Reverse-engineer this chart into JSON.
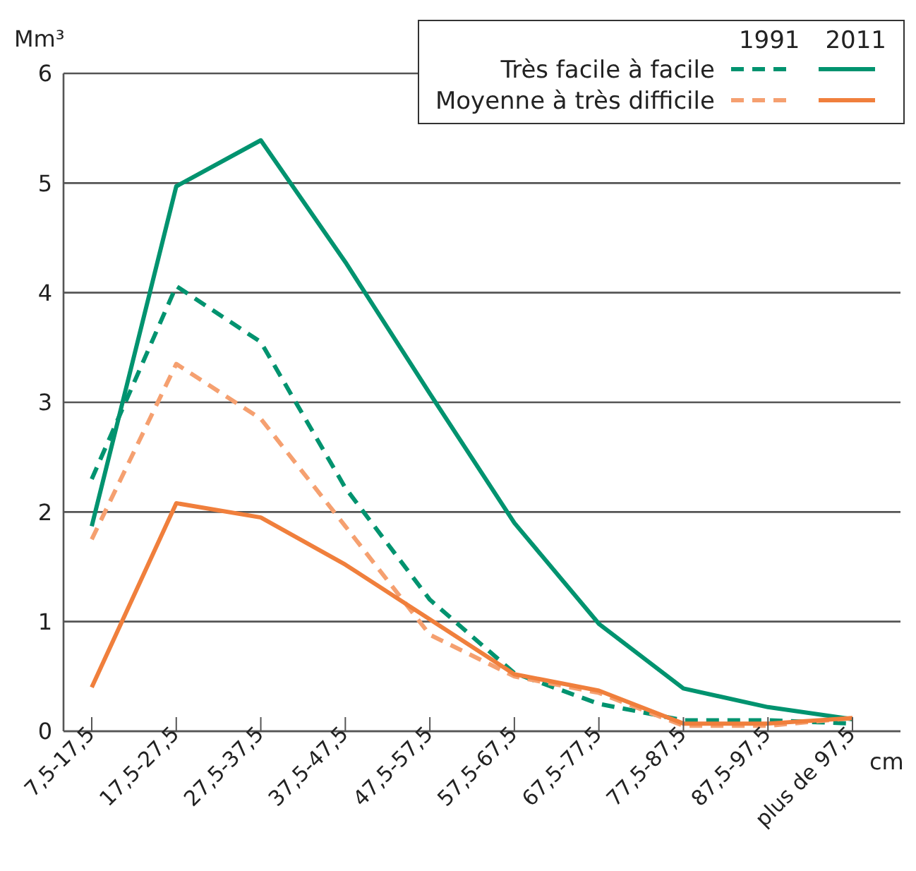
{
  "chart_data": {
    "type": "line",
    "ylabel": "Mm³",
    "xlabel": "cm",
    "categories": [
      "7,5-17,5",
      "17,5-27,5",
      "27,5-37,5",
      "37,5-47,5",
      "47,5-57,5",
      "57,5-67,5",
      "67,5-77,5",
      "77,5-87,5",
      "87,5-97,5",
      "plus de 97,5"
    ],
    "series": [
      {
        "name": "Très facile à facile",
        "color": "#00936f",
        "line_style": "dashed",
        "values": [
          2.3,
          4.06,
          3.55,
          2.22,
          1.2,
          0.53,
          0.25,
          0.1,
          0.1,
          0.07
        ]
      },
      {
        "color": "#00936f",
        "line_style": "solid",
        "values": [
          1.87,
          4.97,
          5.39,
          4.28,
          3.08,
          1.9,
          0.98,
          0.39,
          0.22,
          0.11
        ]
      },
      {
        "name": "Moyenne à très difficile",
        "color": "#f5a070",
        "line_style": "dashed",
        "values": [
          1.75,
          3.35,
          2.85,
          1.87,
          0.88,
          0.5,
          0.35,
          0.05,
          0.05,
          0.12
        ]
      },
      {
        "color": "#f07f3c",
        "line_style": "solid",
        "values": [
          0.4,
          2.08,
          1.95,
          1.52,
          1.02,
          0.52,
          0.37,
          0.07,
          0.07,
          0.12
        ]
      }
    ],
    "annotations": [
      "1991",
      "2011"
    ],
    "ylim": [
      0,
      6
    ],
    "yticks": [
      0,
      1,
      2,
      3,
      4,
      5,
      6
    ],
    "grid": "y",
    "legend": "top right",
    "marker": "none"
  }
}
